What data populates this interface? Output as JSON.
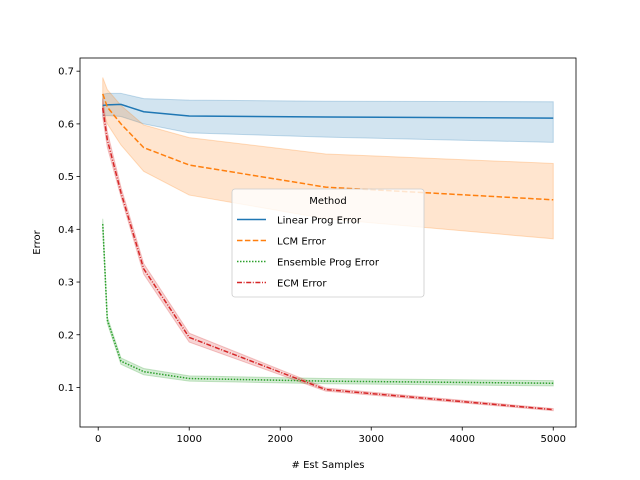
{
  "chart_data": {
    "type": "line",
    "title": "",
    "xlabel": "# Est Samples",
    "ylabel": "Error",
    "xlim": [
      -200,
      5250
    ],
    "ylim": [
      0.025,
      0.725
    ],
    "xticks": [
      0,
      1000,
      2000,
      3000,
      4000,
      5000
    ],
    "xtick_labels": [
      "0",
      "1000",
      "2000",
      "3000",
      "4000",
      "5000"
    ],
    "yticks": [
      0.1,
      0.2,
      0.3,
      0.4,
      0.5,
      0.6,
      0.7
    ],
    "ytick_labels": [
      "0.1",
      "0.2",
      "0.3",
      "0.4",
      "0.5",
      "0.6",
      "0.7"
    ],
    "grid": false,
    "legend": {
      "title": "Method",
      "placement": "center"
    },
    "x": [
      50,
      100,
      250,
      500,
      1000,
      2500,
      5000
    ],
    "series": [
      {
        "name": "Linear Prog Error",
        "color": "#1f77b4",
        "dash": "solid",
        "values": [
          0.635,
          0.636,
          0.637,
          0.623,
          0.615,
          0.613,
          0.611
        ],
        "lower": [
          0.615,
          0.616,
          0.614,
          0.6,
          0.583,
          0.575,
          0.565
        ],
        "upper": [
          0.656,
          0.658,
          0.658,
          0.648,
          0.645,
          0.643,
          0.642
        ]
      },
      {
        "name": "LCM Error",
        "color": "#ff7f0e",
        "dash": "dashed",
        "values": [
          0.657,
          0.632,
          0.6,
          0.555,
          0.522,
          0.48,
          0.456
        ],
        "lower": [
          0.625,
          0.6,
          0.56,
          0.51,
          0.465,
          0.42,
          0.382
        ],
        "upper": [
          0.688,
          0.665,
          0.635,
          0.598,
          0.574,
          0.543,
          0.525
        ]
      },
      {
        "name": "Ensemble Prog Error",
        "color": "#2ca02c",
        "dash": "dotted",
        "values": [
          0.41,
          0.228,
          0.15,
          0.13,
          0.117,
          0.112,
          0.108
        ],
        "lower": [
          0.4,
          0.222,
          0.144,
          0.124,
          0.112,
          0.107,
          0.103
        ],
        "upper": [
          0.42,
          0.234,
          0.156,
          0.136,
          0.122,
          0.117,
          0.113
        ]
      },
      {
        "name": "ECM Error",
        "color": "#d62728",
        "dash": "dashdot",
        "values": [
          0.63,
          0.57,
          0.47,
          0.325,
          0.195,
          0.096,
          0.058
        ],
        "lower": [
          0.612,
          0.556,
          0.462,
          0.315,
          0.186,
          0.093,
          0.056
        ],
        "upper": [
          0.648,
          0.585,
          0.48,
          0.335,
          0.203,
          0.099,
          0.06
        ]
      }
    ]
  }
}
